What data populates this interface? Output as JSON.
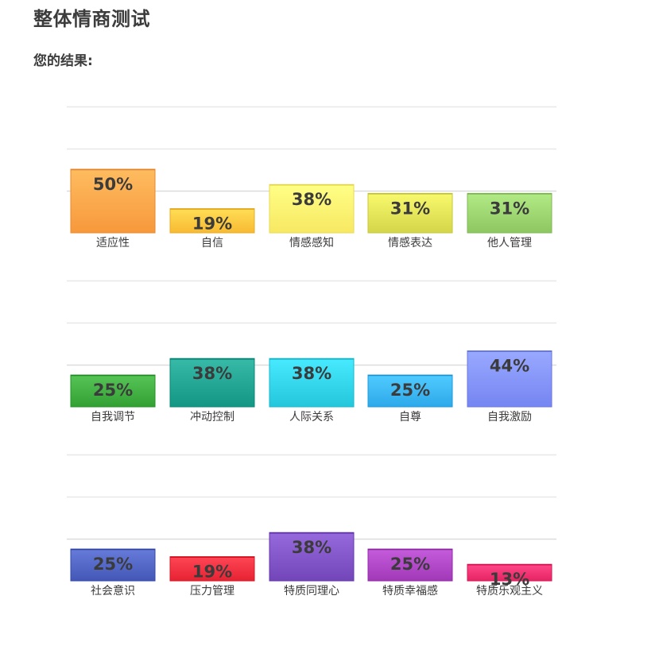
{
  "page": {
    "title": "整体情商测试",
    "subtitle": "您的结果:"
  },
  "chart_data": [
    {
      "type": "bar",
      "categories": [
        "适应性",
        "自信",
        "情感感知",
        "情感表达",
        "他人管理"
      ],
      "values": [
        50,
        19,
        38,
        31,
        31
      ],
      "value_labels": [
        "50%",
        "19%",
        "38%",
        "31%",
        "31%"
      ],
      "colors": [
        "#ffa044",
        "#ffc23a",
        "#fff06a",
        "#dddd52",
        "#96ce6a"
      ],
      "ylim": [
        0,
        100
      ],
      "grid": true,
      "legend": "none"
    },
    {
      "type": "bar",
      "categories": [
        "自我调节",
        "冲动控制",
        "人际关系",
        "自尊",
        "自我激励"
      ],
      "values": [
        25,
        38,
        38,
        25,
        44
      ],
      "value_labels": [
        "25%",
        "38%",
        "38%",
        "25%",
        "44%"
      ],
      "colors": [
        "#3aa83a",
        "#1c9e8c",
        "#2ccee4",
        "#35b0f2",
        "#7d8dfa"
      ],
      "ylim": [
        0,
        100
      ],
      "grid": true,
      "legend": "none"
    },
    {
      "type": "bar",
      "categories": [
        "社会意识",
        "压力管理",
        "特质同理心",
        "特质幸福感",
        "特质乐观主义"
      ],
      "values": [
        25,
        19,
        38,
        25,
        13
      ],
      "value_labels": [
        "25%",
        "19%",
        "38%",
        "25%",
        "13%"
      ],
      "colors": [
        "#4a5fbe",
        "#ee2a3a",
        "#7a4ec0",
        "#a840c0",
        "#ee2c6c"
      ],
      "ylim": [
        0,
        100
      ],
      "grid": true,
      "legend": "none"
    }
  ]
}
